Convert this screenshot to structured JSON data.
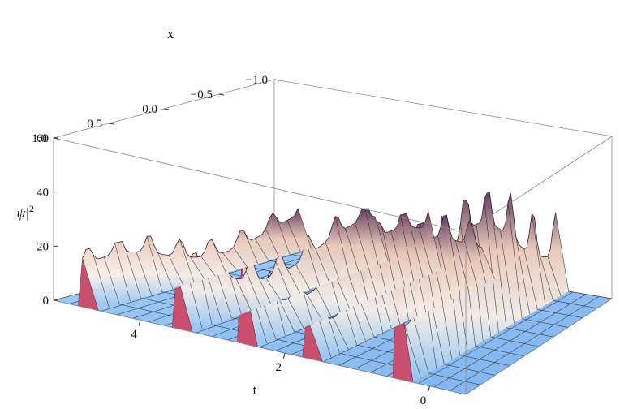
{
  "chart_data": {
    "type": "surface3d",
    "title": "",
    "xlabel": "x",
    "ylabel": "t",
    "zlabel": "|ψ|",
    "zlabel_sup": "2",
    "x_ticks": [
      "−1.0",
      "−0.5",
      "0.0",
      "0.5",
      "1.0"
    ],
    "t_ticks": [
      "4",
      "2",
      "0"
    ],
    "z_ticks": [
      "0",
      "20",
      "40",
      "60"
    ],
    "xlim": [
      -1.0,
      1.0
    ],
    "tlim": [
      -0.5,
      5.2
    ],
    "zlim": [
      0,
      60
    ],
    "ridges": [
      {
        "t": 0.45,
        "peak": 58,
        "t_end": -0.5
      },
      {
        "t": 1.7,
        "peak": 36,
        "t_end": -0.5
      },
      {
        "t": 2.6,
        "peak": 30,
        "t_end": -0.5
      },
      {
        "t": 3.5,
        "peak": 26,
        "t_end": -0.5
      },
      {
        "t": 4.8,
        "peak": 21,
        "t_end": -0.5
      }
    ],
    "grid": false,
    "colors": {
      "low": "#7fb8f2",
      "mid": "#f4efe8",
      "high": "#6b3a60",
      "side": "#c8506e"
    }
  }
}
